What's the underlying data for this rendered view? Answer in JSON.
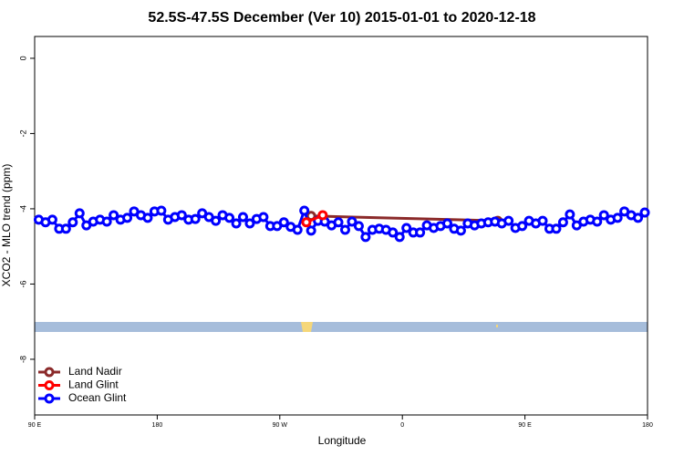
{
  "chart_data": {
    "type": "line",
    "title": "52.5S-47.5S December (Ver 10)   2015-01-01 to 2020-12-18",
    "x_label": "Longitude",
    "y_label": "XCO2 - MLO trend (ppm)",
    "xlim": [
      90,
      540
    ],
    "xticks": [
      {
        "value": 90,
        "label": "90 E"
      },
      {
        "value": 180,
        "label": "180"
      },
      {
        "value": 270,
        "label": "90 W"
      },
      {
        "value": 360,
        "label": "0"
      },
      {
        "value": 450,
        "label": "90 E"
      },
      {
        "value": 540,
        "label": "180"
      }
    ],
    "ylim": [
      -9.48,
      0.58
    ],
    "yticks": [
      0,
      -2,
      -4,
      -6,
      -8
    ],
    "legend": "bottom-left",
    "series": [
      {
        "name": "Land Nadir",
        "color": "#8b2a2a",
        "x": [
          293,
          430
        ],
        "values": [
          -4.19,
          -4.32
        ]
      },
      {
        "name": "Land Glint",
        "color": "#ff0000",
        "x": [
          289.5,
          301.5
        ],
        "values": [
          -4.36,
          -4.17
        ]
      },
      {
        "name": "Ocean Glint",
        "color": "#0000ff",
        "x": [
          93,
          98,
          103,
          108,
          113,
          118,
          123,
          128,
          133,
          138,
          143,
          148,
          153,
          158,
          163,
          168,
          173,
          178,
          183,
          188,
          193,
          198,
          203,
          208,
          213,
          218,
          223,
          228,
          233,
          238,
          243,
          248,
          253,
          258,
          263,
          268,
          273,
          278,
          283,
          288,
          293,
          298,
          303,
          308,
          313,
          318,
          323,
          328,
          333,
          338,
          343,
          348,
          353,
          358,
          363,
          368,
          373,
          378,
          383,
          388,
          393,
          398,
          403,
          408,
          413,
          418,
          423,
          428,
          433,
          438,
          443,
          448,
          453,
          458,
          463,
          468,
          473,
          478,
          483,
          488,
          493,
          498,
          503,
          508,
          513,
          518,
          523,
          528,
          533,
          538
        ],
        "values": [
          -4.29,
          -4.36,
          -4.29,
          -4.53,
          -4.53,
          -4.36,
          -4.12,
          -4.44,
          -4.34,
          -4.29,
          -4.34,
          -4.17,
          -4.29,
          -4.24,
          -4.07,
          -4.17,
          -4.24,
          -4.07,
          -4.05,
          -4.29,
          -4.22,
          -4.17,
          -4.29,
          -4.27,
          -4.12,
          -4.22,
          -4.32,
          -4.17,
          -4.24,
          -4.39,
          -4.22,
          -4.39,
          -4.27,
          -4.22,
          -4.46,
          -4.46,
          -4.36,
          -4.48,
          -4.56,
          -4.05,
          -4.58,
          -4.32,
          -4.34,
          -4.44,
          -4.36,
          -4.56,
          -4.34,
          -4.46,
          -4.75,
          -4.56,
          -4.53,
          -4.56,
          -4.63,
          -4.75,
          -4.51,
          -4.63,
          -4.63,
          -4.44,
          -4.51,
          -4.46,
          -4.39,
          -4.53,
          -4.58,
          -4.39,
          -4.44,
          -4.39,
          -4.36,
          -4.34,
          -4.39,
          -4.32,
          -4.51,
          -4.46,
          -4.32,
          -4.39,
          -4.32,
          -4.53,
          -4.53,
          -4.36,
          -4.15,
          -4.44,
          -4.34,
          -4.29,
          -4.34,
          -4.17,
          -4.29,
          -4.24,
          -4.07,
          -4.17,
          -4.24,
          -4.1
        ]
      }
    ]
  }
}
